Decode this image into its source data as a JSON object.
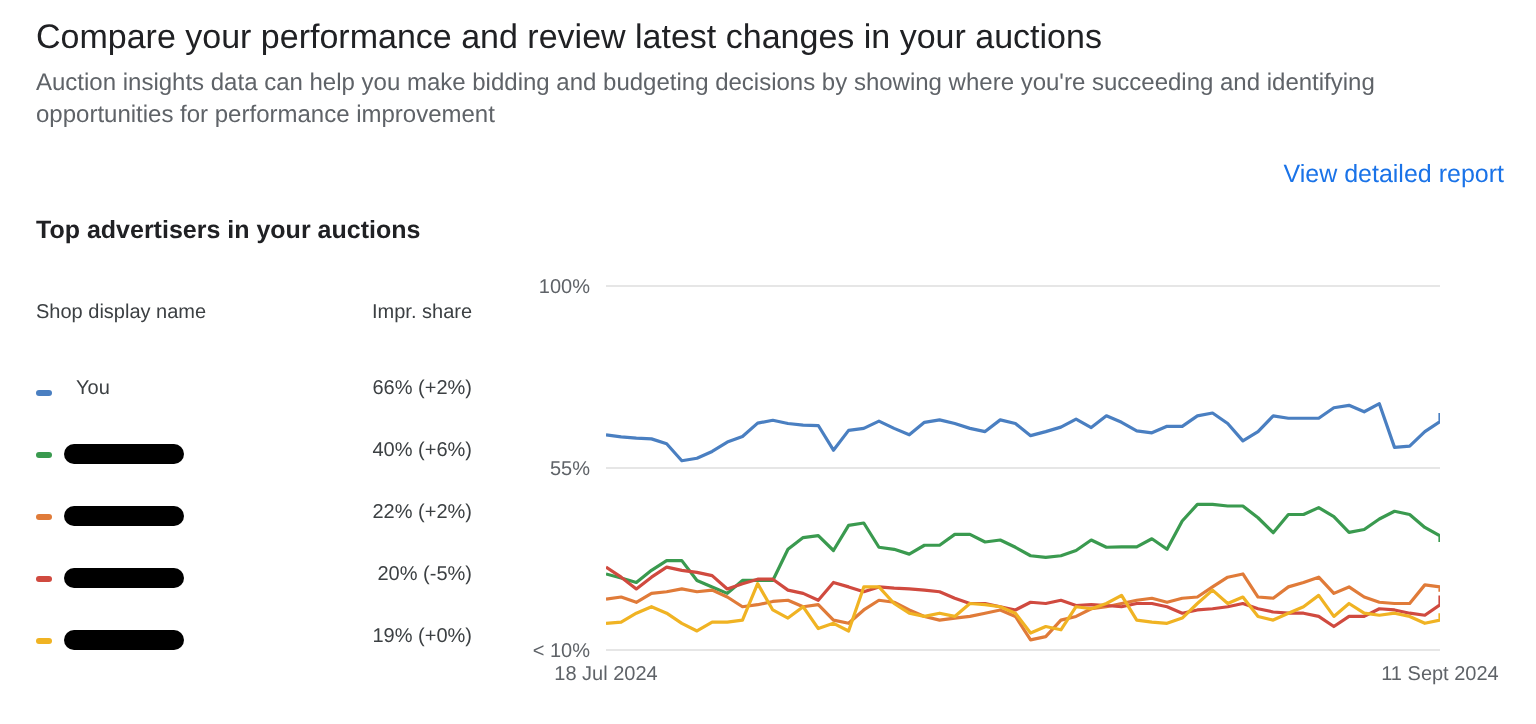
{
  "chart_data": {
    "type": "line",
    "title": "Compare your performance and review latest changes in your auctions",
    "subtitle": "Auction insights data can help you make bidding and budgeting decisions by showing where you're succeeding and identifying opportunities for performance improvement",
    "annotations": [
      "View detailed report",
      "Top advertisers in your auctions",
      "Shop display name",
      "Impr. share",
      "66% (+2%)",
      "40% (+6%)",
      "22% (+2%)",
      "20% (-5%)",
      "19% (+0%)"
    ],
    "x": [
      "2024-07-18",
      "2024-07-19",
      "2024-07-20",
      "2024-07-21",
      "2024-07-22",
      "2024-07-23",
      "2024-07-24",
      "2024-07-25",
      "2024-07-26",
      "2024-07-27",
      "2024-07-28",
      "2024-07-29",
      "2024-07-30",
      "2024-07-31",
      "2024-08-01",
      "2024-08-02",
      "2024-08-03",
      "2024-08-04",
      "2024-08-05",
      "2024-08-06",
      "2024-08-07",
      "2024-08-08",
      "2024-08-09",
      "2024-08-10",
      "2024-08-11",
      "2024-08-12",
      "2024-08-13",
      "2024-08-14",
      "2024-08-15",
      "2024-08-16",
      "2024-08-17",
      "2024-08-18",
      "2024-08-19",
      "2024-08-20",
      "2024-08-21",
      "2024-08-22",
      "2024-08-23",
      "2024-08-24",
      "2024-08-25",
      "2024-08-26",
      "2024-08-27",
      "2024-08-28",
      "2024-08-29",
      "2024-08-30",
      "2024-08-31",
      "2024-09-01",
      "2024-09-02",
      "2024-09-03",
      "2024-09-04",
      "2024-09-05",
      "2024-09-06",
      "2024-09-07",
      "2024-09-08",
      "2024-09-09",
      "2024-09-10",
      "2024-09-11",
      "2024-09-11"
    ],
    "series": [
      {
        "name": "You",
        "color": "#4a7fc1",
        "values": [
          63.2,
          62.7,
          62.4,
          62.2,
          61.0,
          56.8,
          57.4,
          59.1,
          61.4,
          62.8,
          66.1,
          66.8,
          66.0,
          65.6,
          65.5,
          59.4,
          64.3,
          64.8,
          66.6,
          64.8,
          63.2,
          66.3,
          66.9,
          66.0,
          64.8,
          64.0,
          66.9,
          66.0,
          63.0,
          64.0,
          65.1,
          67.1,
          65.0,
          67.9,
          66.3,
          64.2,
          63.7,
          65.3,
          65.3,
          67.9,
          68.6,
          66.0,
          61.7,
          64.0,
          67.9,
          67.3,
          67.3,
          67.3,
          69.9,
          70.5,
          68.9,
          70.9,
          60.1,
          60.4,
          64.0,
          66.5,
          68.6
        ]
      },
      {
        "color": "#3a9a4f",
        "values": [
          28.8,
          27.8,
          26.7,
          29.7,
          32.1,
          32.1,
          27.2,
          25.6,
          24.0,
          27.2,
          27.2,
          27.2,
          34.9,
          37.8,
          38.3,
          34.6,
          40.8,
          41.4,
          35.4,
          34.9,
          33.7,
          35.9,
          35.9,
          38.6,
          38.6,
          36.7,
          37.2,
          35.4,
          33.3,
          32.9,
          33.3,
          34.6,
          37.2,
          35.4,
          35.5,
          35.5,
          37.5,
          34.9,
          41.9,
          46.0,
          46.0,
          45.6,
          45.6,
          42.7,
          39.0,
          43.5,
          43.5,
          45.2,
          43.0,
          39.1,
          39.8,
          42.4,
          44.3,
          43.5,
          40.3,
          38.2,
          36.7
        ]
      },
      {
        "color": "#e07b39",
        "values": [
          22.6,
          23.1,
          21.8,
          24.0,
          24.4,
          25.1,
          24.4,
          24.8,
          23.1,
          20.7,
          21.2,
          22.0,
          22.3,
          20.7,
          21.2,
          17.4,
          16.6,
          19.9,
          22.3,
          21.8,
          19.9,
          18.3,
          17.4,
          17.9,
          18.3,
          19.1,
          19.9,
          18.3,
          12.5,
          13.3,
          17.4,
          18.3,
          20.2,
          20.7,
          21.5,
          22.3,
          22.8,
          21.8,
          22.8,
          23.1,
          25.6,
          28.0,
          28.8,
          23.1,
          22.8,
          25.6,
          26.7,
          28.0,
          24.0,
          25.6,
          23.1,
          21.8,
          21.5,
          21.5,
          26.1,
          25.6,
          24.4
        ]
      },
      {
        "color": "#d04a3f",
        "values": [
          30.5,
          28.0,
          25.1,
          28.0,
          30.5,
          29.7,
          29.2,
          28.4,
          25.1,
          26.4,
          27.5,
          27.5,
          24.8,
          24.0,
          22.3,
          26.7,
          25.6,
          24.4,
          25.6,
          25.3,
          25.1,
          24.8,
          24.4,
          22.8,
          21.5,
          21.5,
          20.7,
          19.9,
          21.8,
          21.5,
          22.3,
          21.0,
          21.2,
          21.0,
          20.7,
          21.5,
          21.5,
          20.7,
          19.1,
          19.9,
          20.2,
          20.7,
          21.5,
          20.2,
          19.4,
          19.1,
          19.1,
          18.3,
          15.8,
          18.3,
          18.3,
          20.2,
          19.9,
          19.1,
          18.6,
          21.2,
          23.5
        ]
      },
      {
        "color": "#f0b323",
        "values": [
          16.6,
          16.9,
          19.1,
          20.7,
          19.1,
          16.6,
          14.7,
          16.9,
          16.9,
          17.4,
          26.4,
          19.9,
          17.9,
          20.7,
          15.3,
          16.6,
          14.7,
          25.6,
          25.6,
          21.5,
          19.1,
          18.3,
          19.1,
          18.3,
          21.5,
          21.2,
          20.7,
          19.1,
          14.2,
          15.8,
          15.0,
          20.7,
          20.2,
          21.5,
          23.5,
          17.4,
          16.9,
          16.6,
          17.9,
          21.5,
          24.8,
          21.5,
          23.1,
          18.3,
          17.4,
          19.1,
          20.7,
          23.5,
          18.3,
          21.5,
          19.1,
          18.6,
          19.1,
          18.3,
          16.6,
          17.4,
          19.1
        ]
      }
    ],
    "xlim": [
      "2024-07-18",
      "2024-09-11"
    ],
    "xticks": [
      {
        "value": "2024-07-18",
        "label": "18 Jul 2024"
      },
      {
        "value": "2024-09-11",
        "label": "11 Sept 2024"
      }
    ],
    "ylim": [
      10,
      100
    ],
    "yticks": [
      {
        "value": 10,
        "label": "< 10%"
      },
      {
        "value": 55,
        "label": "55%"
      },
      {
        "value": 100,
        "label": "100%"
      }
    ],
    "grid": "y",
    "legend": "left",
    "marker": "none",
    "line_style": "solid"
  }
}
